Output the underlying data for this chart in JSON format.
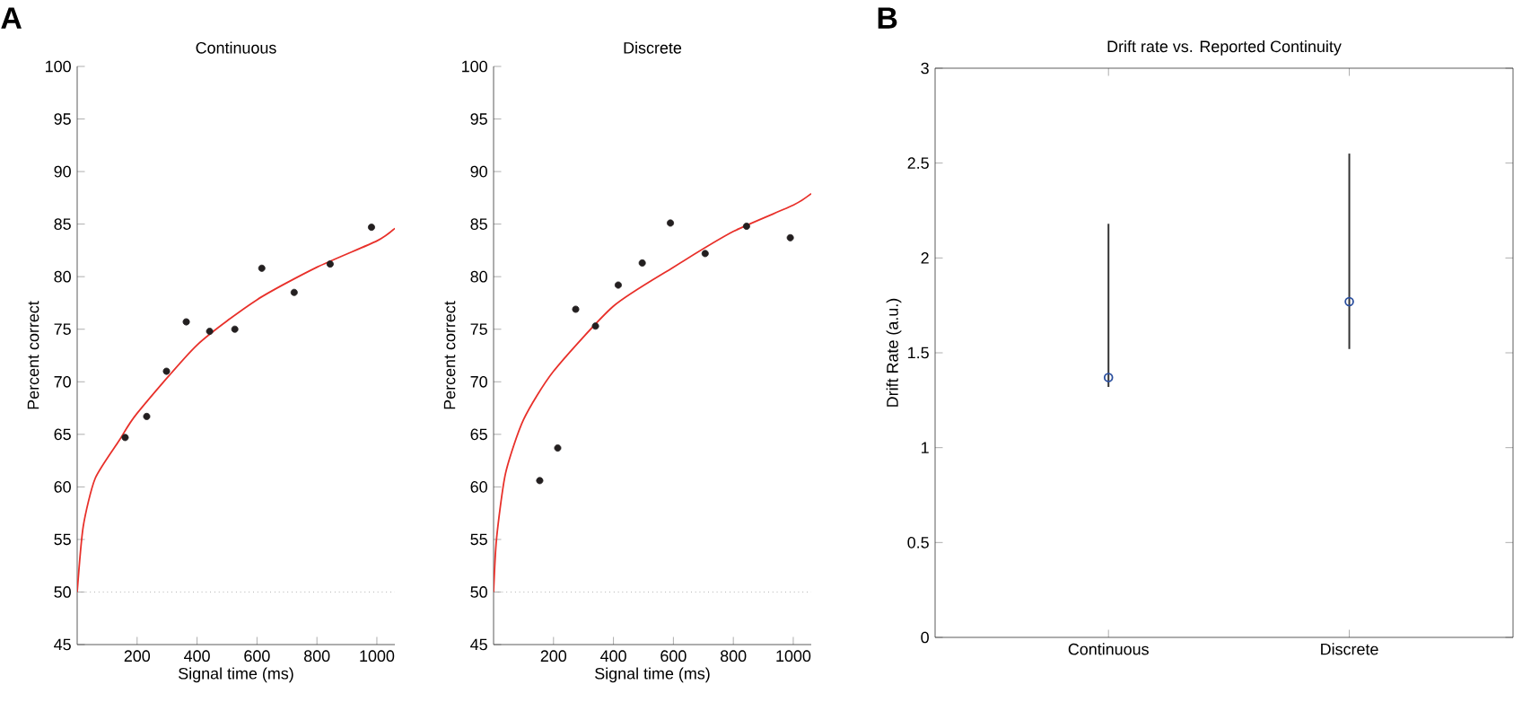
{
  "chart_data": [
    {
      "type": "scatter",
      "title": "Continuous",
      "xlabel": "Signal time (ms)",
      "ylabel": "Percent correct",
      "annotations": [
        "A"
      ],
      "xlim": [
        0,
        1060
      ],
      "xticks": [
        200,
        400,
        600,
        800,
        1000
      ],
      "ylim": [
        45,
        100
      ],
      "yticks": [
        45,
        50,
        55,
        60,
        65,
        70,
        75,
        80,
        85,
        90,
        95,
        100
      ],
      "series": [
        {
          "type": "scatter",
          "marker": "circle",
          "color": "#231f20",
          "x": [
            160,
            232,
            298,
            364,
            442,
            526,
            616,
            724,
            844,
            982
          ],
          "values": [
            64.7,
            66.7,
            71.0,
            75.7,
            74.8,
            75.0,
            80.8,
            78.5,
            81.2,
            84.7
          ]
        },
        {
          "type": "line",
          "color": "#e8302a",
          "x": [
            0,
            20,
            60,
            140,
            200,
            400,
            600,
            800,
            1000,
            1060
          ],
          "values": [
            50,
            56.2,
            60.8,
            64.4,
            67.0,
            73.5,
            77.8,
            80.9,
            83.4,
            84.6
          ]
        }
      ],
      "ref_lines": [
        {
          "axis": "y",
          "value": 50,
          "color": "#888888",
          "line_style": "dotted"
        }
      ]
    },
    {
      "type": "scatter",
      "title": "Discrete",
      "xlabel": "Signal time (ms)",
      "ylabel": "Percent correct",
      "xlim": [
        0,
        1060
      ],
      "xticks": [
        200,
        400,
        600,
        800,
        1000
      ],
      "ylim": [
        45,
        100
      ],
      "yticks": [
        45,
        50,
        55,
        60,
        65,
        70,
        75,
        80,
        85,
        90,
        95,
        100
      ],
      "series": [
        {
          "type": "scatter",
          "marker": "circle",
          "color": "#231f20",
          "x": [
            154,
            214,
            274,
            340,
            416,
            496,
            590,
            706,
            844,
            990
          ],
          "values": [
            60.6,
            63.7,
            76.9,
            75.3,
            79.2,
            81.3,
            85.1,
            82.2,
            84.8,
            83.7
          ]
        },
        {
          "type": "line",
          "color": "#e8302a",
          "x": [
            0,
            10,
            40,
            100,
            200,
            400,
            600,
            800,
            1000,
            1060
          ],
          "values": [
            50,
            55.1,
            61.3,
            66.4,
            71.0,
            77.2,
            80.9,
            84.3,
            86.8,
            87.9
          ]
        }
      ],
      "ref_lines": [
        {
          "axis": "y",
          "value": 50,
          "color": "#888888",
          "line_style": "dotted"
        }
      ]
    },
    {
      "type": "scatter",
      "title": "Drift rate vs. Reported Continuity",
      "ylabel": "Drift Rate (a.u.)",
      "annotations": [
        "B"
      ],
      "categories": [
        "Continuous",
        "Discrete"
      ],
      "ylim": [
        0,
        3
      ],
      "yticks": [
        0,
        0.5,
        1,
        1.5,
        2,
        2.5,
        3
      ],
      "marker": "circle",
      "series": [
        {
          "color": "#2b4f9e",
          "values": [
            1.37,
            1.77
          ],
          "errors": [
            [
              1.32,
              2.18
            ],
            [
              1.52,
              2.55
            ]
          ]
        }
      ]
    }
  ]
}
